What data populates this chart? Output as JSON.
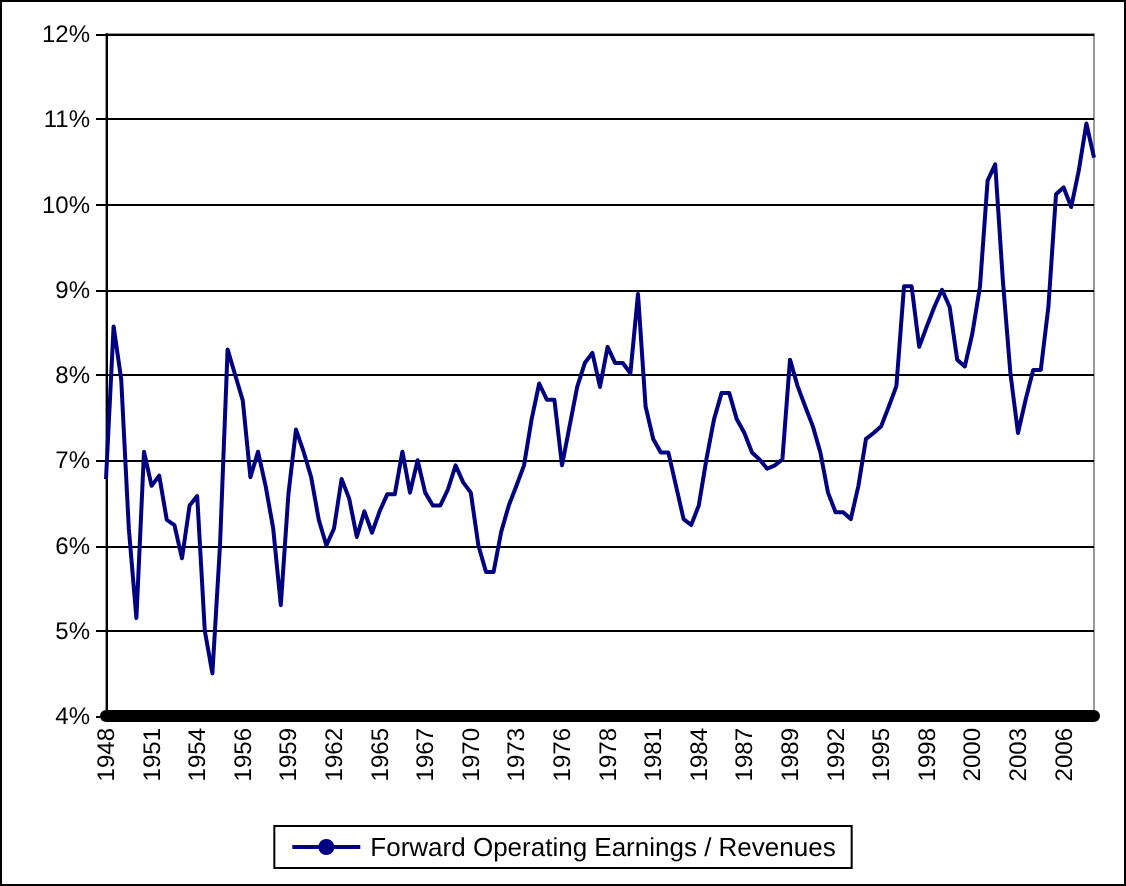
{
  "chart_data": {
    "type": "line",
    "categories": [
      "1948",
      null,
      null,
      null,
      null,
      null,
      "1951",
      null,
      null,
      null,
      null,
      null,
      "1954",
      null,
      null,
      null,
      null,
      null,
      "1956",
      null,
      null,
      null,
      null,
      null,
      "1959",
      null,
      null,
      null,
      null,
      null,
      "1962",
      null,
      null,
      null,
      null,
      null,
      "1965",
      null,
      null,
      null,
      null,
      null,
      "1967",
      null,
      null,
      null,
      null,
      null,
      "1970",
      null,
      null,
      null,
      null,
      null,
      "1973",
      null,
      null,
      null,
      null,
      null,
      "1976",
      null,
      null,
      null,
      null,
      null,
      "1978",
      null,
      null,
      null,
      null,
      null,
      "1981",
      null,
      null,
      null,
      null,
      null,
      "1984",
      null,
      null,
      null,
      null,
      null,
      "1987",
      null,
      null,
      null,
      null,
      null,
      "1989",
      null,
      null,
      null,
      null,
      null,
      "1992",
      null,
      null,
      null,
      null,
      null,
      "1995",
      null,
      null,
      null,
      null,
      null,
      "1998",
      null,
      null,
      null,
      null,
      null,
      "2000",
      null,
      null,
      null,
      null,
      null,
      "2003",
      null,
      null,
      null,
      null,
      null,
      "2006",
      null,
      null,
      null,
      null
    ],
    "series": [
      {
        "name": "Forward Operating Earnings / Revenues",
        "color": "#000080",
        "values": [
          6.78,
          8.57,
          7.95,
          6.2,
          5.15,
          7.1,
          6.7,
          6.82,
          6.3,
          6.24,
          5.85,
          6.47,
          6.58,
          5.0,
          4.5,
          6.0,
          8.3,
          8.0,
          7.7,
          6.8,
          7.1,
          6.7,
          6.2,
          5.3,
          6.6,
          7.36,
          7.1,
          6.8,
          6.3,
          6.0,
          6.2,
          6.78,
          6.55,
          6.1,
          6.4,
          6.15,
          6.4,
          6.6,
          6.6,
          7.1,
          6.62,
          7.0,
          6.62,
          6.47,
          6.47,
          6.66,
          6.94,
          6.74,
          6.62,
          6.0,
          5.69,
          5.69,
          6.16,
          6.47,
          6.7,
          6.94,
          7.48,
          7.9,
          7.71,
          7.71,
          6.94,
          7.4,
          7.86,
          8.14,
          8.26,
          7.86,
          8.33,
          8.14,
          8.14,
          8.02,
          8.95,
          7.63,
          7.25,
          7.09,
          7.09,
          6.7,
          6.31,
          6.24,
          6.47,
          7.01,
          7.48,
          7.79,
          7.79,
          7.48,
          7.32,
          7.09,
          7.01,
          6.9,
          6.94,
          7.01,
          8.18,
          7.87,
          7.63,
          7.4,
          7.09,
          6.62,
          6.39,
          6.39,
          6.31,
          6.7,
          7.25,
          7.32,
          7.4,
          7.63,
          7.87,
          9.04,
          9.04,
          8.33,
          8.57,
          8.8,
          9.0,
          8.8,
          8.18,
          8.1,
          8.49,
          9.04,
          10.28,
          10.47,
          9.12,
          8.02,
          7.32,
          7.71,
          8.06,
          8.06,
          8.8,
          10.12,
          10.2,
          9.97,
          10.4,
          10.95,
          10.55
        ]
      }
    ],
    "ylim": [
      4,
      12
    ],
    "yticks": [
      {
        "value": 4,
        "label": "4%"
      },
      {
        "value": 5,
        "label": "5%"
      },
      {
        "value": 6,
        "label": "6%"
      },
      {
        "value": 7,
        "label": "7%"
      },
      {
        "value": 8,
        "label": "8%"
      },
      {
        "value": 9,
        "label": "9%"
      },
      {
        "value": 10,
        "label": "10%"
      },
      {
        "value": 11,
        "label": "11%"
      },
      {
        "value": 12,
        "label": "12%"
      }
    ],
    "grid": "y",
    "legend": "bottom",
    "marker": "none",
    "line_style": "solid"
  }
}
